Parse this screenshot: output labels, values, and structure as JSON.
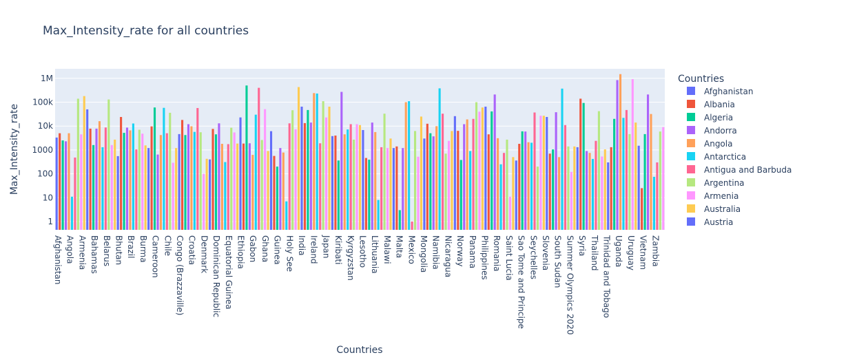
{
  "chart_data": {
    "type": "bar",
    "title": "Max_Intensity_rate for all countries",
    "xlabel": "Countries",
    "ylabel": "Max_Intensity_rate",
    "yscale": "log",
    "ylim": [
      0.45,
      2500000
    ],
    "yticks": [
      {
        "value": 1,
        "label": "1"
      },
      {
        "value": 10,
        "label": "10"
      },
      {
        "value": 100,
        "label": "100"
      },
      {
        "value": 1000,
        "label": "1000"
      },
      {
        "value": 10000,
        "label": "10k"
      },
      {
        "value": 100000,
        "label": "100k"
      },
      {
        "value": 1000000,
        "label": "1M"
      }
    ],
    "grid": true,
    "legend_title": "Countries",
    "legend_position": "right",
    "colors": [
      "#636efa",
      "#EF553B",
      "#00cc96",
      "#ab63fa",
      "#FFA15A",
      "#19d3f3",
      "#FF6692",
      "#B6E880",
      "#FF97FF",
      "#FECB52"
    ],
    "legend": [
      "Afghanistan",
      "Albania",
      "Algeria",
      "Andorra",
      "Angola",
      "Antarctica",
      "Antigua and Barbuda",
      "Argentina",
      "Armenia",
      "Australia",
      "Austria"
    ],
    "tick_labels": [
      "Afghanistan",
      "Angola",
      "Armenia",
      "Bahamas",
      "Belarus",
      "Bhutan",
      "Brazil",
      "Burma",
      "Cameroon",
      "Chile",
      "Congo (Brazzaville)",
      "Croatia",
      "Denmark",
      "Dominican Republic",
      "Equatorial Guinea",
      "Ethiopia",
      "Gabon",
      "Ghana",
      "Guinea",
      "Holy See",
      "India",
      "Ireland",
      "Japan",
      "Kiribati",
      "Kyrgyzstan",
      "Lesotho",
      "Lithuania",
      "Malawi",
      "Malta",
      "Mexico",
      "Mongolia",
      "Namibia",
      "Nicaragua",
      "Norway",
      "Panama",
      "Philippines",
      "Romania",
      "Saint Lucia",
      "Sao Tome and Principe",
      "Seychelles",
      "Slovenia",
      "South Sudan",
      "Summer Olympics 2020",
      "Syria",
      "Thailand",
      "Trinidad and Tobago",
      "Uganda",
      "Uruguay",
      "Vietnam",
      "Zambia"
    ],
    "values": [
      3300,
      5000,
      2500,
      2300,
      5000,
      11,
      480,
      140000,
      4500,
      180000,
      50000,
      7800,
      1600,
      7800,
      16000,
      1300,
      8700,
      130000,
      1600,
      2700,
      550,
      24000,
      5200,
      8600,
      6600,
      12800,
      1050,
      7000,
      4800,
      1550,
      1200,
      9700,
      60000,
      640,
      4200,
      58000,
      5000,
      36000,
      290,
      1200,
      4600,
      18000,
      4200,
      12000,
      9800,
      5700,
      57000,
      5500,
      100,
      425,
      400,
      7600,
      4500,
      13000,
      1800,
      310,
      1750,
      8500,
      5400,
      1850,
      23000,
      1850,
      500000,
      1900,
      620,
      30000,
      400000,
      2600,
      51000,
      900,
      6100,
      560,
      200,
      1200,
      780,
      7,
      13000,
      46000,
      7300,
      430000,
      65000,
      13300,
      47000,
      14000,
      240000,
      230000,
      1900,
      110000,
      23000,
      65000,
      3800,
      4000,
      360,
      270000,
      4500,
      7200,
      12000,
      2700,
      12000,
      11000,
      6800,
      460,
      390,
      14000,
      5600,
      8,
      1300,
      33000,
      1200,
      3000,
      1200,
      1400,
      3,
      1200,
      100000,
      110000,
      1,
      6200,
      520,
      25000,
      3000,
      12500,
      5000,
      3700,
      9900,
      380000,
      33000,
      700,
      2400,
      6200,
      26000,
      6300,
      380,
      12000,
      19000,
      900,
      20000,
      100000,
      40000,
      60000,
      65000,
      4500,
      41000,
      210000,
      3100,
      250,
      750,
      2700,
      11,
      500,
      360,
      1800,
      6000,
      5900,
      2100,
      2000,
      37000,
      200,
      27000,
      27000,
      24000,
      700,
      1050,
      38000,
      500,
      370000,
      11000,
      1400,
      120,
      1400,
      1300,
      140000,
      93000,
      900,
      750,
      420,
      2400,
      42000,
      530,
      1050,
      300,
      1300,
      20000,
      840000,
      1500000,
      22000,
      47000,
      4600,
      920000,
      14000,
      1500,
      25,
      4600,
      210000,
      32000,
      75,
      300,
      5900,
      9000
    ],
    "annotation_text": ""
  }
}
